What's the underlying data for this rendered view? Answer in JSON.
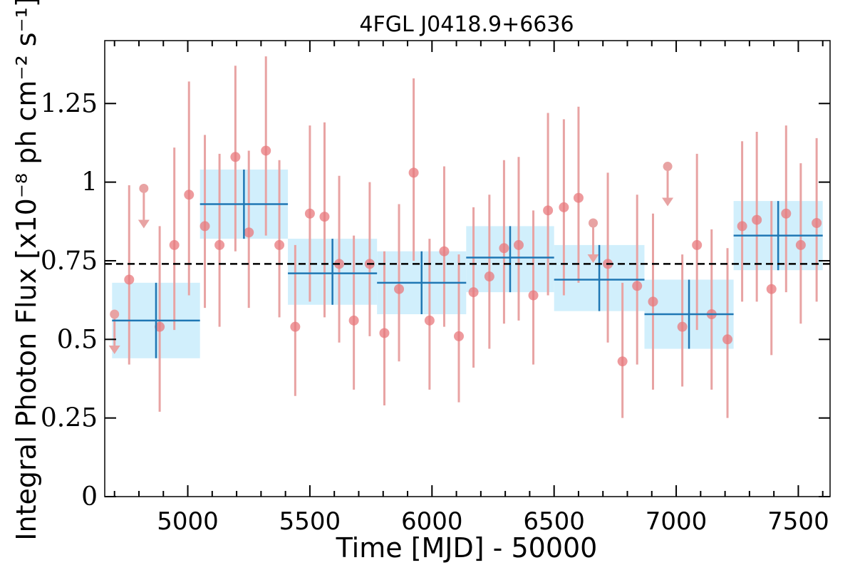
{
  "chart_data": {
    "type": "scatter",
    "title": "4FGL J0418.9+6636",
    "xlabel": "Time [MJD] - 50000",
    "ylabel": "Integral Photon Flux [x10⁻⁸ ph cm⁻² s⁻¹]",
    "xlim": [
      4660,
      7630
    ],
    "ylim": [
      0,
      1.45
    ],
    "xticks": [
      5000,
      5500,
      6000,
      6500,
      7000,
      7500
    ],
    "yticks": [
      0,
      0.25,
      0.5,
      0.75,
      1,
      1.25
    ],
    "ytick_labels": [
      "0",
      "0.25",
      "0.5",
      "0.75",
      "1",
      "1.25"
    ],
    "mean_flux": 0.74,
    "grid": false,
    "colors": {
      "points": "#e8787c",
      "errorbars": "#e8a3a3",
      "bins": "#1f77b4",
      "bin_fill": "#c9ecfb",
      "mean_line": "#000000"
    },
    "series": [
      {
        "kind": "short_bins",
        "points": [
          {
            "x": 4700,
            "y": 0.58,
            "ul": true
          },
          {
            "x": 4760,
            "y": 0.69,
            "lo": 0.42,
            "hi": 0.99
          },
          {
            "x": 4820,
            "y": 0.98,
            "ul": true
          },
          {
            "x": 4885,
            "y": 0.54,
            "lo": 0.27,
            "hi": 0.86
          },
          {
            "x": 4945,
            "y": 0.8,
            "lo": 0.53,
            "hi": 1.11
          },
          {
            "x": 5005,
            "y": 0.96,
            "lo": 0.64,
            "hi": 1.32
          },
          {
            "x": 5070,
            "y": 0.86,
            "lo": 0.6,
            "hi": 1.15
          },
          {
            "x": 5130,
            "y": 0.8,
            "lo": 0.54,
            "hi": 1.09
          },
          {
            "x": 5195,
            "y": 1.08,
            "lo": 0.78,
            "hi": 1.37
          },
          {
            "x": 5250,
            "y": 0.84,
            "lo": 0.6,
            "hi": 1.1
          },
          {
            "x": 5320,
            "y": 1.1,
            "lo": 0.83,
            "hi": 1.4
          },
          {
            "x": 5375,
            "y": 0.8,
            "lo": 0.57,
            "hi": 1.07
          },
          {
            "x": 5440,
            "y": 0.54,
            "lo": 0.32,
            "hi": 0.8
          },
          {
            "x": 5500,
            "y": 0.9,
            "lo": 0.62,
            "hi": 1.18
          },
          {
            "x": 5560,
            "y": 0.89,
            "lo": 0.57,
            "hi": 1.19
          },
          {
            "x": 5620,
            "y": 0.74,
            "lo": 0.49,
            "hi": 1.02
          },
          {
            "x": 5680,
            "y": 0.56,
            "lo": 0.34,
            "hi": 0.83
          },
          {
            "x": 5745,
            "y": 0.74,
            "lo": 0.51,
            "hi": 1.0
          },
          {
            "x": 5805,
            "y": 0.52,
            "lo": 0.29,
            "hi": 0.78
          },
          {
            "x": 5865,
            "y": 0.66,
            "lo": 0.43,
            "hi": 0.93
          },
          {
            "x": 5925,
            "y": 1.03,
            "lo": 0.75,
            "hi": 1.33
          },
          {
            "x": 5990,
            "y": 0.56,
            "lo": 0.34,
            "hi": 0.82
          },
          {
            "x": 6050,
            "y": 0.78,
            "lo": 0.54,
            "hi": 1.05
          },
          {
            "x": 6110,
            "y": 0.51,
            "lo": 0.3,
            "hi": 0.77
          },
          {
            "x": 6170,
            "y": 0.65,
            "lo": 0.41,
            "hi": 0.92
          },
          {
            "x": 6235,
            "y": 0.7,
            "lo": 0.47,
            "hi": 0.96
          },
          {
            "x": 6295,
            "y": 0.79,
            "lo": 0.55,
            "hi": 1.07
          },
          {
            "x": 6355,
            "y": 0.8,
            "lo": 0.56,
            "hi": 1.08
          },
          {
            "x": 6415,
            "y": 0.64,
            "lo": 0.42,
            "hi": 0.91
          },
          {
            "x": 6475,
            "y": 0.91,
            "lo": 0.64,
            "hi": 1.22
          },
          {
            "x": 6540,
            "y": 0.92,
            "lo": 0.64,
            "hi": 1.2
          },
          {
            "x": 6600,
            "y": 0.95,
            "lo": 0.68,
            "hi": 1.24
          },
          {
            "x": 6660,
            "y": 0.87,
            "ul": true
          },
          {
            "x": 6720,
            "y": 0.74,
            "lo": 0.49,
            "hi": 1.03
          },
          {
            "x": 6780,
            "y": 0.43,
            "lo": 0.25,
            "hi": 0.68
          },
          {
            "x": 6840,
            "y": 0.67,
            "lo": 0.42,
            "hi": 0.96
          },
          {
            "x": 6905,
            "y": 0.62,
            "lo": 0.34,
            "hi": 0.9
          },
          {
            "x": 6965,
            "y": 1.05,
            "ul": true
          },
          {
            "x": 7025,
            "y": 0.54,
            "lo": 0.35,
            "hi": 0.77
          },
          {
            "x": 7085,
            "y": 0.8,
            "lo": 0.53,
            "hi": 1.09
          },
          {
            "x": 7145,
            "y": 0.58,
            "lo": 0.34,
            "hi": 0.85
          },
          {
            "x": 7210,
            "y": 0.5,
            "lo": 0.25,
            "hi": 0.79
          },
          {
            "x": 7270,
            "y": 0.86,
            "lo": 0.62,
            "hi": 1.13
          },
          {
            "x": 7330,
            "y": 0.88,
            "lo": 0.62,
            "hi": 1.16
          },
          {
            "x": 7390,
            "y": 0.66,
            "lo": 0.45,
            "hi": 0.94
          },
          {
            "x": 7450,
            "y": 0.9,
            "lo": 0.65,
            "hi": 1.18
          },
          {
            "x": 7510,
            "y": 0.8,
            "lo": 0.55,
            "hi": 1.06
          },
          {
            "x": 7575,
            "y": 0.87,
            "lo": 0.62,
            "hi": 1.14
          }
        ]
      },
      {
        "kind": "long_bins",
        "bins": [
          {
            "x0": 4690,
            "x1": 5050,
            "y": 0.56,
            "lo": 0.44,
            "hi": 0.68
          },
          {
            "x0": 5050,
            "x1": 5410,
            "y": 0.93,
            "lo": 0.82,
            "hi": 1.04
          },
          {
            "x0": 5410,
            "x1": 5775,
            "y": 0.71,
            "lo": 0.61,
            "hi": 0.82
          },
          {
            "x0": 5775,
            "x1": 6140,
            "y": 0.68,
            "lo": 0.58,
            "hi": 0.78
          },
          {
            "x0": 6140,
            "x1": 6500,
            "y": 0.76,
            "lo": 0.65,
            "hi": 0.86
          },
          {
            "x0": 6500,
            "x1": 6870,
            "y": 0.69,
            "lo": 0.59,
            "hi": 0.8
          },
          {
            "x0": 6870,
            "x1": 7235,
            "y": 0.58,
            "lo": 0.47,
            "hi": 0.69
          },
          {
            "x0": 7235,
            "x1": 7600,
            "y": 0.83,
            "lo": 0.72,
            "hi": 0.94
          }
        ]
      }
    ]
  }
}
